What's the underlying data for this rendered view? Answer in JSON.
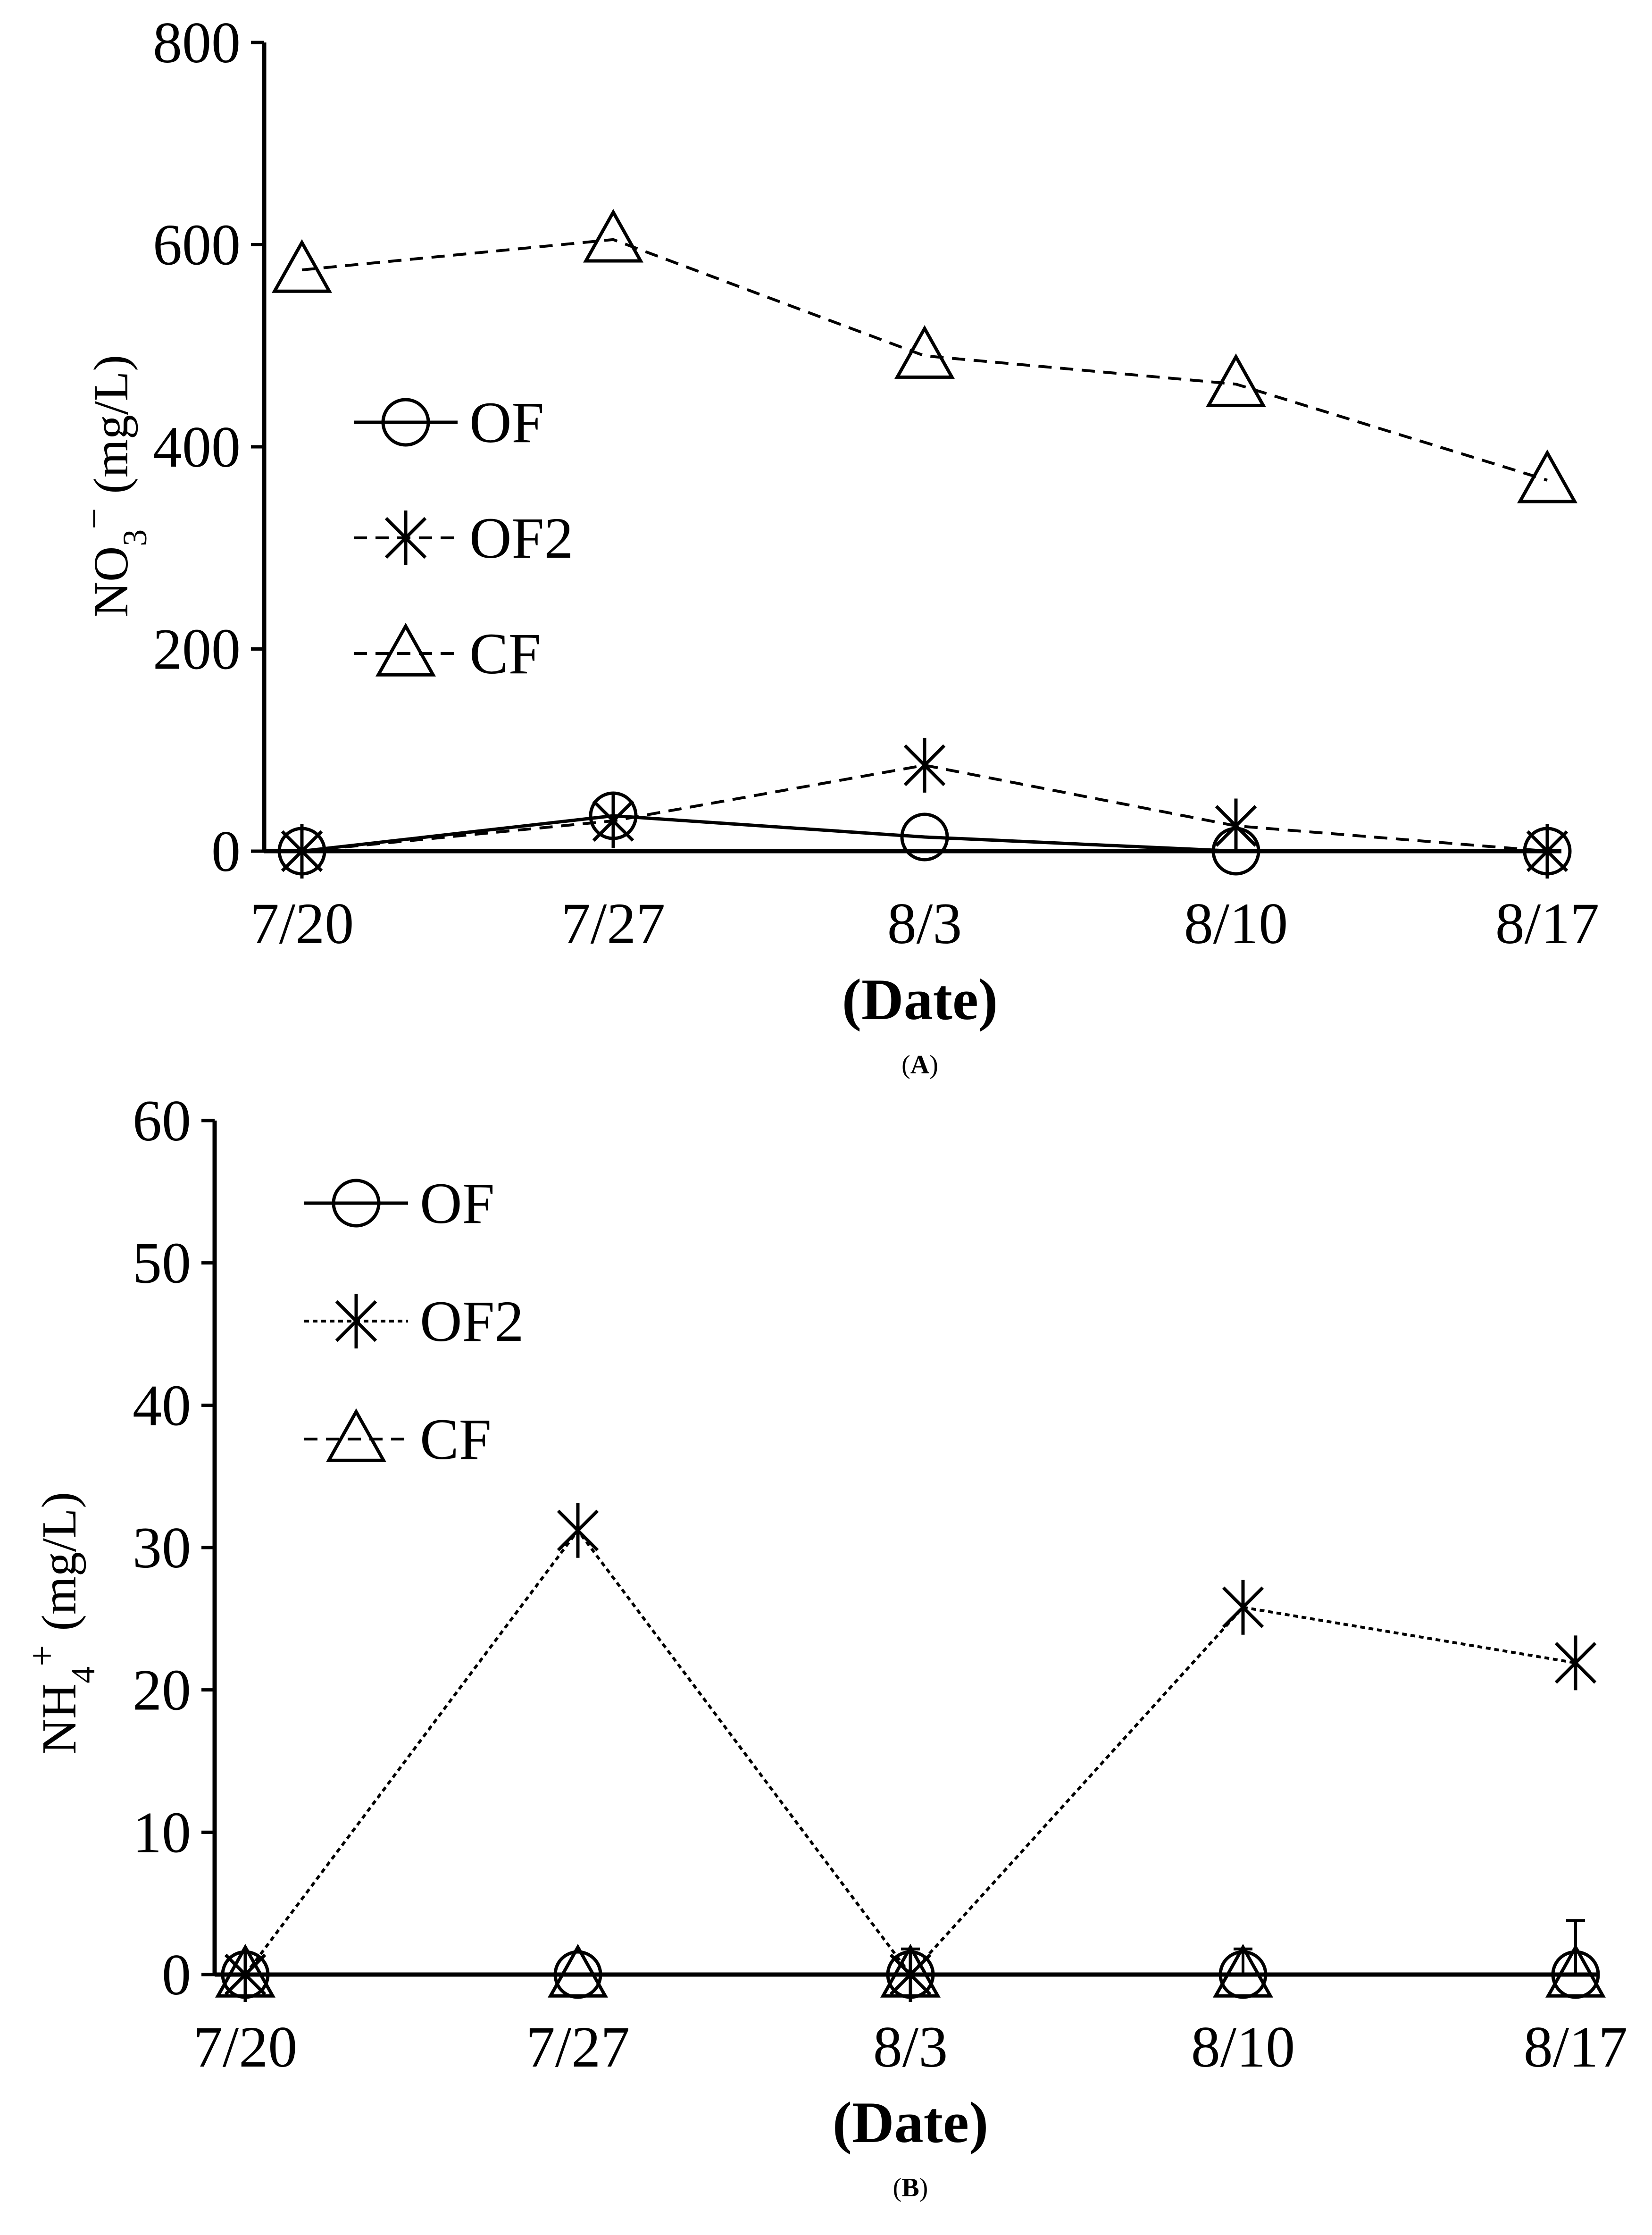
{
  "chart_data": [
    {
      "panel": "A",
      "type": "line",
      "panel_label": "A",
      "xlabel": "(Date)",
      "ylabel": {
        "base": "NO",
        "sub": "3",
        "sup": "−",
        "unit": "(mg/L)"
      },
      "categories": [
        "7/20",
        "7/27",
        "8/3",
        "8/10",
        "8/17"
      ],
      "ylim": [
        0,
        800
      ],
      "yticks": [
        0,
        200,
        400,
        600,
        800
      ],
      "legend_position": "center-left",
      "series": [
        {
          "name": "OF",
          "marker": "circle",
          "line": "solid",
          "values": [
            0,
            35,
            14,
            0,
            0
          ]
        },
        {
          "name": "OF2",
          "marker": "asterisk",
          "line": "dashed",
          "values": [
            0,
            30,
            85,
            25,
            0
          ]
        },
        {
          "name": "CF",
          "marker": "triangle",
          "line": "dashed",
          "values": [
            575,
            605,
            490,
            462,
            367
          ]
        }
      ]
    },
    {
      "panel": "B",
      "type": "line",
      "panel_label": "B",
      "xlabel": "(Date)",
      "ylabel": {
        "base": "NH",
        "sub": "4",
        "sup": "+",
        "unit": "(mg/L)"
      },
      "categories": [
        "7/20",
        "7/27",
        "8/3",
        "8/10",
        "8/17"
      ],
      "ylim": [
        0,
        60
      ],
      "yticks": [
        0,
        10,
        20,
        30,
        40,
        50,
        60
      ],
      "legend_position": "top-left",
      "series": [
        {
          "name": "OF",
          "marker": "circle",
          "line": "solid",
          "values": [
            0,
            0,
            0,
            0,
            0
          ],
          "error": [
            0,
            0,
            0,
            0,
            3.8
          ]
        },
        {
          "name": "OF2",
          "marker": "asterisk",
          "line": "dotted",
          "values": [
            0,
            31.2,
            0,
            25.8,
            21.9
          ]
        },
        {
          "name": "CF",
          "marker": "triangle",
          "line": "dashed",
          "values": [
            0,
            0,
            0,
            0,
            0
          ],
          "error": [
            0,
            0,
            1.8,
            1.8,
            0
          ]
        }
      ]
    }
  ]
}
